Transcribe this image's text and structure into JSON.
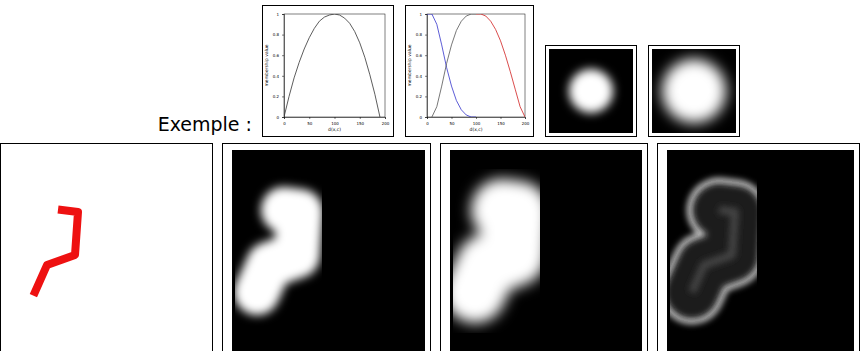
{
  "title": "Exemple :",
  "chart_data": [
    {
      "type": "line",
      "x_label": "d(x,c)",
      "y_label": "membership value",
      "x": [
        0,
        10,
        20,
        30,
        40,
        50,
        60,
        70,
        80,
        90,
        100,
        110,
        120,
        130,
        140,
        150,
        160,
        170,
        180,
        190
      ],
      "series": [
        {
          "color": "#333333",
          "values": [
            0,
            0.2,
            0.38,
            0.53,
            0.66,
            0.77,
            0.86,
            0.93,
            0.97,
            0.99,
            1,
            0.99,
            0.96,
            0.91,
            0.83,
            0.72,
            0.58,
            0.41,
            0.22,
            0
          ]
        }
      ],
      "xlim": [
        0,
        200
      ],
      "ylim": [
        0,
        1
      ],
      "xticks": [
        0,
        50,
        100,
        150,
        200
      ],
      "yticks": [
        0,
        0.2,
        0.4,
        0.6,
        0.8,
        1
      ]
    },
    {
      "type": "line",
      "x_label": "d(x,c)",
      "y_label": "membership value",
      "x": [
        0,
        10,
        20,
        30,
        40,
        50,
        60,
        70,
        80,
        90,
        100,
        110,
        120,
        130,
        140,
        150,
        160,
        170,
        180,
        190,
        200
      ],
      "series": [
        {
          "color": "#3333cc",
          "values": [
            1,
            1,
            0.9,
            0.7,
            0.48,
            0.3,
            0.16,
            0.07,
            0.02,
            0,
            0,
            null,
            null,
            null,
            null,
            null,
            null,
            null,
            null,
            null,
            null
          ]
        },
        {
          "color": "#555555",
          "values": [
            null,
            0,
            0.1,
            0.3,
            0.52,
            0.7,
            0.84,
            0.93,
            0.98,
            1,
            1,
            null,
            null,
            null,
            null,
            null,
            null,
            null,
            null,
            null,
            null
          ]
        },
        {
          "color": "#d02020",
          "values": [
            null,
            null,
            null,
            null,
            null,
            null,
            null,
            null,
            null,
            null,
            1,
            1,
            0.98,
            0.93,
            0.85,
            0.74,
            0.6,
            0.44,
            0.27,
            0.1,
            0
          ]
        }
      ],
      "xlim": [
        0,
        200
      ],
      "ylim": [
        0,
        1
      ],
      "xticks": [
        0,
        50,
        100,
        150,
        200
      ],
      "yticks": [
        0,
        0.2,
        0.4,
        0.6,
        0.8,
        1
      ]
    }
  ]
}
